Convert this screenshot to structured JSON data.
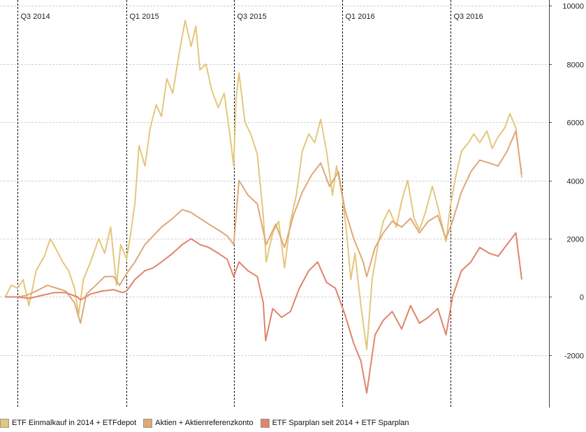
{
  "chart_data": {
    "type": "line",
    "title": "",
    "xlabel": "",
    "ylabel": "",
    "ylim": [
      -3800,
      10200
    ],
    "yticks": [
      -2000,
      0,
      2000,
      4000,
      6000,
      8000,
      10000
    ],
    "x_range": [
      "2014-06-01",
      "2016-12-15"
    ],
    "quarter_markers": [
      {
        "date": "2014-07-01",
        "label": "Q3 2014"
      },
      {
        "date": "2015-01-01",
        "label": "Q1 2015"
      },
      {
        "date": "2015-07-01",
        "label": "Q3 2015"
      },
      {
        "date": "2016-01-01",
        "label": "Q1 2016"
      },
      {
        "date": "2016-07-01",
        "label": "Q3 2016"
      }
    ],
    "grid": true,
    "legend_position": "bottom",
    "series": [
      {
        "name": "ETF Einmalkauf in 2014 + ETFdepot",
        "color": "#E3C77B",
        "points": [
          [
            "2014-06-10",
            0
          ],
          [
            "2014-06-20",
            400
          ],
          [
            "2014-07-01",
            300
          ],
          [
            "2014-07-10",
            600
          ],
          [
            "2014-07-20",
            -300
          ],
          [
            "2014-08-01",
            900
          ],
          [
            "2014-08-15",
            1400
          ],
          [
            "2014-08-25",
            2000
          ],
          [
            "2014-09-05",
            1600
          ],
          [
            "2014-09-15",
            1200
          ],
          [
            "2014-09-25",
            900
          ],
          [
            "2014-10-05",
            300
          ],
          [
            "2014-10-12",
            -600
          ],
          [
            "2014-10-20",
            600
          ],
          [
            "2014-11-01",
            1200
          ],
          [
            "2014-11-15",
            2000
          ],
          [
            "2014-11-25",
            1500
          ],
          [
            "2014-12-05",
            2400
          ],
          [
            "2014-12-15",
            400
          ],
          [
            "2014-12-22",
            1800
          ],
          [
            "2015-01-01",
            1300
          ],
          [
            "2015-01-08",
            2200
          ],
          [
            "2015-01-15",
            3200
          ],
          [
            "2015-01-22",
            5200
          ],
          [
            "2015-02-01",
            4500
          ],
          [
            "2015-02-10",
            5800
          ],
          [
            "2015-02-20",
            6600
          ],
          [
            "2015-03-01",
            6200
          ],
          [
            "2015-03-10",
            7500
          ],
          [
            "2015-03-20",
            7000
          ],
          [
            "2015-04-01",
            8500
          ],
          [
            "2015-04-10",
            9500
          ],
          [
            "2015-04-20",
            8600
          ],
          [
            "2015-04-28",
            9300
          ],
          [
            "2015-05-05",
            7800
          ],
          [
            "2015-05-15",
            8000
          ],
          [
            "2015-05-25",
            7100
          ],
          [
            "2015-06-05",
            6500
          ],
          [
            "2015-06-15",
            7000
          ],
          [
            "2015-06-25",
            5500
          ],
          [
            "2015-07-01",
            4500
          ],
          [
            "2015-07-05",
            6800
          ],
          [
            "2015-07-10",
            7700
          ],
          [
            "2015-07-20",
            6000
          ],
          [
            "2015-07-30",
            5600
          ],
          [
            "2015-08-10",
            4900
          ],
          [
            "2015-08-20",
            2800
          ],
          [
            "2015-08-25",
            1200
          ],
          [
            "2015-09-05",
            2200
          ],
          [
            "2015-09-15",
            2600
          ],
          [
            "2015-09-25",
            1000
          ],
          [
            "2015-10-05",
            2600
          ],
          [
            "2015-10-15",
            3500
          ],
          [
            "2015-10-25",
            5000
          ],
          [
            "2015-11-05",
            5600
          ],
          [
            "2015-11-15",
            5300
          ],
          [
            "2015-11-25",
            6100
          ],
          [
            "2015-12-05",
            5000
          ],
          [
            "2015-12-15",
            3500
          ],
          [
            "2015-12-22",
            4500
          ],
          [
            "2016-01-01",
            3400
          ],
          [
            "2016-01-08",
            2200
          ],
          [
            "2016-01-15",
            600
          ],
          [
            "2016-01-22",
            1500
          ],
          [
            "2016-02-01",
            -300
          ],
          [
            "2016-02-11",
            -1800
          ],
          [
            "2016-02-20",
            600
          ],
          [
            "2016-03-01",
            1800
          ],
          [
            "2016-03-10",
            2600
          ],
          [
            "2016-03-20",
            3000
          ],
          [
            "2016-04-01",
            2400
          ],
          [
            "2016-04-10",
            3300
          ],
          [
            "2016-04-20",
            4000
          ],
          [
            "2016-05-01",
            2700
          ],
          [
            "2016-05-10",
            2300
          ],
          [
            "2016-05-20",
            2900
          ],
          [
            "2016-06-01",
            3800
          ],
          [
            "2016-06-10",
            3100
          ],
          [
            "2016-06-24",
            1900
          ],
          [
            "2016-07-01",
            3100
          ],
          [
            "2016-07-10",
            4100
          ],
          [
            "2016-07-20",
            5000
          ],
          [
            "2016-08-01",
            5300
          ],
          [
            "2016-08-10",
            5600
          ],
          [
            "2016-08-20",
            5300
          ],
          [
            "2016-09-01",
            5700
          ],
          [
            "2016-09-10",
            5100
          ],
          [
            "2016-09-20",
            5500
          ],
          [
            "2016-10-01",
            5800
          ],
          [
            "2016-10-10",
            6300
          ],
          [
            "2016-10-20",
            5800
          ],
          [
            "2016-10-30",
            4100
          ]
        ]
      },
      {
        "name": "Aktien + Aktienreferenzkonto",
        "color": "#DFA875",
        "points": [
          [
            "2014-06-10",
            0
          ],
          [
            "2014-07-01",
            0
          ],
          [
            "2014-07-15",
            50
          ],
          [
            "2014-08-01",
            200
          ],
          [
            "2014-08-20",
            400
          ],
          [
            "2014-09-05",
            300
          ],
          [
            "2014-09-20",
            200
          ],
          [
            "2014-10-05",
            -200
          ],
          [
            "2014-10-15",
            -900
          ],
          [
            "2014-10-25",
            100
          ],
          [
            "2014-11-10",
            400
          ],
          [
            "2014-11-25",
            700
          ],
          [
            "2014-12-10",
            700
          ],
          [
            "2014-12-20",
            400
          ],
          [
            "2015-01-01",
            800
          ],
          [
            "2015-01-15",
            1200
          ],
          [
            "2015-02-01",
            1800
          ],
          [
            "2015-02-15",
            2100
          ],
          [
            "2015-03-01",
            2400
          ],
          [
            "2015-03-20",
            2700
          ],
          [
            "2015-04-05",
            3000
          ],
          [
            "2015-04-20",
            2900
          ],
          [
            "2015-05-05",
            2700
          ],
          [
            "2015-05-20",
            2500
          ],
          [
            "2015-06-05",
            2300
          ],
          [
            "2015-06-20",
            2100
          ],
          [
            "2015-07-01",
            1800
          ],
          [
            "2015-07-10",
            4000
          ],
          [
            "2015-07-25",
            3500
          ],
          [
            "2015-08-10",
            3200
          ],
          [
            "2015-08-25",
            1800
          ],
          [
            "2015-09-10",
            2500
          ],
          [
            "2015-09-25",
            1700
          ],
          [
            "2015-10-10",
            2800
          ],
          [
            "2015-10-25",
            3600
          ],
          [
            "2015-11-10",
            4200
          ],
          [
            "2015-11-25",
            4600
          ],
          [
            "2015-12-10",
            3800
          ],
          [
            "2015-12-25",
            4300
          ],
          [
            "2016-01-05",
            3000
          ],
          [
            "2016-01-20",
            2000
          ],
          [
            "2016-02-05",
            1200
          ],
          [
            "2016-02-11",
            700
          ],
          [
            "2016-02-25",
            1700
          ],
          [
            "2016-03-10",
            2200
          ],
          [
            "2016-03-25",
            2600
          ],
          [
            "2016-04-10",
            2400
          ],
          [
            "2016-04-25",
            2700
          ],
          [
            "2016-05-10",
            2200
          ],
          [
            "2016-05-25",
            2600
          ],
          [
            "2016-06-10",
            2800
          ],
          [
            "2016-06-24",
            2000
          ],
          [
            "2016-07-05",
            2600
          ],
          [
            "2016-07-20",
            3600
          ],
          [
            "2016-08-05",
            4300
          ],
          [
            "2016-08-20",
            4700
          ],
          [
            "2016-09-05",
            4600
          ],
          [
            "2016-09-20",
            4500
          ],
          [
            "2016-10-05",
            5000
          ],
          [
            "2016-10-20",
            5700
          ],
          [
            "2016-10-30",
            4200
          ]
        ]
      },
      {
        "name": "ETF Sparplan seit 2014 + ETF Sparplan",
        "color": "#E0846C",
        "points": [
          [
            "2014-06-10",
            0
          ],
          [
            "2014-07-01",
            0
          ],
          [
            "2014-07-20",
            -50
          ],
          [
            "2014-08-10",
            50
          ],
          [
            "2014-09-01",
            150
          ],
          [
            "2014-09-20",
            150
          ],
          [
            "2014-10-10",
            0
          ],
          [
            "2014-10-15",
            -100
          ],
          [
            "2014-11-01",
            100
          ],
          [
            "2014-11-20",
            200
          ],
          [
            "2014-12-10",
            250
          ],
          [
            "2014-12-25",
            150
          ],
          [
            "2015-01-01",
            200
          ],
          [
            "2015-01-15",
            600
          ],
          [
            "2015-02-01",
            900
          ],
          [
            "2015-02-15",
            1000
          ],
          [
            "2015-03-01",
            1200
          ],
          [
            "2015-03-20",
            1500
          ],
          [
            "2015-04-05",
            1800
          ],
          [
            "2015-04-20",
            2000
          ],
          [
            "2015-05-05",
            1800
          ],
          [
            "2015-05-20",
            1700
          ],
          [
            "2015-06-05",
            1500
          ],
          [
            "2015-06-20",
            1300
          ],
          [
            "2015-07-01",
            700
          ],
          [
            "2015-07-10",
            1200
          ],
          [
            "2015-07-25",
            900
          ],
          [
            "2015-08-10",
            700
          ],
          [
            "2015-08-20",
            -200
          ],
          [
            "2015-08-24",
            -1500
          ],
          [
            "2015-09-05",
            -400
          ],
          [
            "2015-09-20",
            -700
          ],
          [
            "2015-10-05",
            -500
          ],
          [
            "2015-10-20",
            300
          ],
          [
            "2015-11-05",
            900
          ],
          [
            "2015-11-20",
            1200
          ],
          [
            "2015-12-05",
            500
          ],
          [
            "2015-12-20",
            300
          ],
          [
            "2016-01-05",
            -600
          ],
          [
            "2016-01-20",
            -1600
          ],
          [
            "2016-02-01",
            -2200
          ],
          [
            "2016-02-11",
            -3300
          ],
          [
            "2016-02-25",
            -1300
          ],
          [
            "2016-03-10",
            -800
          ],
          [
            "2016-03-25",
            -500
          ],
          [
            "2016-04-10",
            -1100
          ],
          [
            "2016-04-25",
            -300
          ],
          [
            "2016-05-10",
            -900
          ],
          [
            "2016-05-25",
            -700
          ],
          [
            "2016-06-10",
            -400
          ],
          [
            "2016-06-24",
            -1300
          ],
          [
            "2016-07-05",
            0
          ],
          [
            "2016-07-20",
            900
          ],
          [
            "2016-08-05",
            1200
          ],
          [
            "2016-08-20",
            1700
          ],
          [
            "2016-09-05",
            1500
          ],
          [
            "2016-09-20",
            1400
          ],
          [
            "2016-10-05",
            1800
          ],
          [
            "2016-10-20",
            2200
          ],
          [
            "2016-10-30",
            600
          ]
        ]
      }
    ]
  }
}
